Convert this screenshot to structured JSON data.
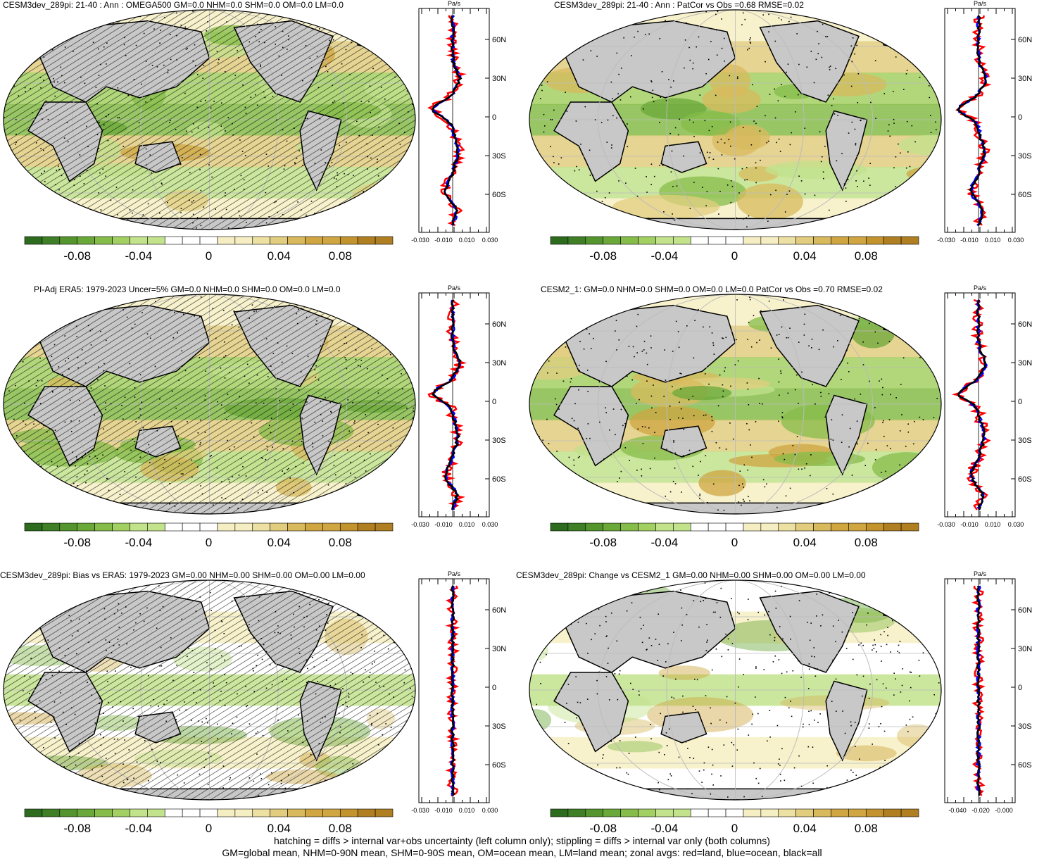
{
  "panels": [
    {
      "title": "CESM3dev_289pi: 21-40 : Ann : OMEGA500 GM=0.0 NHM=0.0 SHM=0.0 OM=0.0 LM=0.0",
      "zonal_unit": "Pa/s",
      "lat_labels": [
        "60N",
        "30N",
        "0",
        "30S",
        "60S"
      ],
      "zonal_ticks": [
        "-0.030",
        "-0.010",
        "0.010",
        "0.030"
      ],
      "colorbar_labels": [
        "-0.08",
        "-0.04",
        "0",
        "0.04",
        "0.08"
      ],
      "hatching": true,
      "stippling": true
    },
    {
      "title": "CESM3dev_289pi: 21-40 : Ann : PatCor vs Obs =0.68 RMSE=0.02",
      "zonal_unit": "Pa/s",
      "lat_labels": [
        "60N",
        "30N",
        "0",
        "30S",
        "60S"
      ],
      "zonal_ticks": [
        "-0.030",
        "-0.010",
        "0.010",
        "0.030"
      ],
      "colorbar_labels": [
        "-0.08",
        "-0.04",
        "0",
        "0.04",
        "0.08"
      ],
      "hatching": false,
      "stippling": true
    },
    {
      "title": "PI-Adj ERA5: 1979-2023 Uncer=5% GM=0.0 NHM=0.0 SHM=0.0 OM=0.0 LM=0.0",
      "zonal_unit": "Pa/s",
      "lat_labels": [
        "60N",
        "30N",
        "0",
        "30S",
        "60S"
      ],
      "zonal_ticks": [
        "-0.030",
        "-0.010",
        "0.010",
        "0.030"
      ],
      "colorbar_labels": [
        "-0.08",
        "-0.04",
        "0",
        "0.04",
        "0.08"
      ],
      "hatching": true,
      "stippling": true
    },
    {
      "title": "CESM2_1: GM=0.0 NHM=0.0 SHM=0.0 OM=0.0 LM=0.0 PatCor vs Obs =0.70 RMSE=0.02",
      "zonal_unit": "Pa/s",
      "lat_labels": [
        "60N",
        "30N",
        "0",
        "30S",
        "60S"
      ],
      "zonal_ticks": [
        "-0.030",
        "-0.010",
        "0.010",
        "0.030"
      ],
      "colorbar_labels": [
        "-0.08",
        "-0.04",
        "0",
        "0.04",
        "0.08"
      ],
      "hatching": false,
      "stippling": true
    },
    {
      "title": "CESM3dev_289pi: Bias vs ERA5: 1979-2023 GM=0.00 NHM=0.00 SHM=0.00 OM=0.00 LM=0.00",
      "zonal_unit": "Pa/s",
      "lat_labels": [
        "60N",
        "30N",
        "0",
        "30S",
        "60S"
      ],
      "zonal_ticks": [
        "-0.030",
        "-0.010",
        "0.010",
        "0.030"
      ],
      "colorbar_labels": [
        "-0.08",
        "-0.04",
        "0",
        "0.04",
        "0.08"
      ],
      "hatching": true,
      "stippling": true
    },
    {
      "title": "CESM3dev_289pi: Change vs CESM2_1 GM=0.00 NHM=0.00 SHM=0.00 OM=0.00 LM=0.00",
      "zonal_unit": "Pa/s",
      "lat_labels": [
        "60N",
        "30N",
        "0",
        "30S",
        "60S"
      ],
      "zonal_ticks": [
        "-0.040",
        "-0.020",
        "-0.000"
      ],
      "colorbar_labels": [
        "-0.08",
        "-0.04",
        "0",
        "0.04",
        "0.08"
      ],
      "hatching": false,
      "stippling": true
    }
  ],
  "colorbar_colors": [
    "#2d6b1e",
    "#3f7f26",
    "#55952e",
    "#6ba83a",
    "#86bc4a",
    "#a3d063",
    "#c2e28c",
    "#ffffff",
    "#f6eec3",
    "#ede0a3",
    "#e2cd7f",
    "#d8b95d",
    "#cfa641",
    "#c3942e",
    "#b07f22"
  ],
  "line_colors": {
    "land": "#ff0000",
    "ocean": "#0000ff",
    "all": "#000000"
  },
  "footer": {
    "line1": "hatching = diffs > internal var+obs uncertainty (left column only); stippling = diffs > internal var only (both columns)",
    "line2": "GM=global mean, NHM=0-90N mean, SHM=0-90S mean, OM=ocean mean, LM=land mean; zonal avgs: red=land, blue=ocean, black=all"
  }
}
